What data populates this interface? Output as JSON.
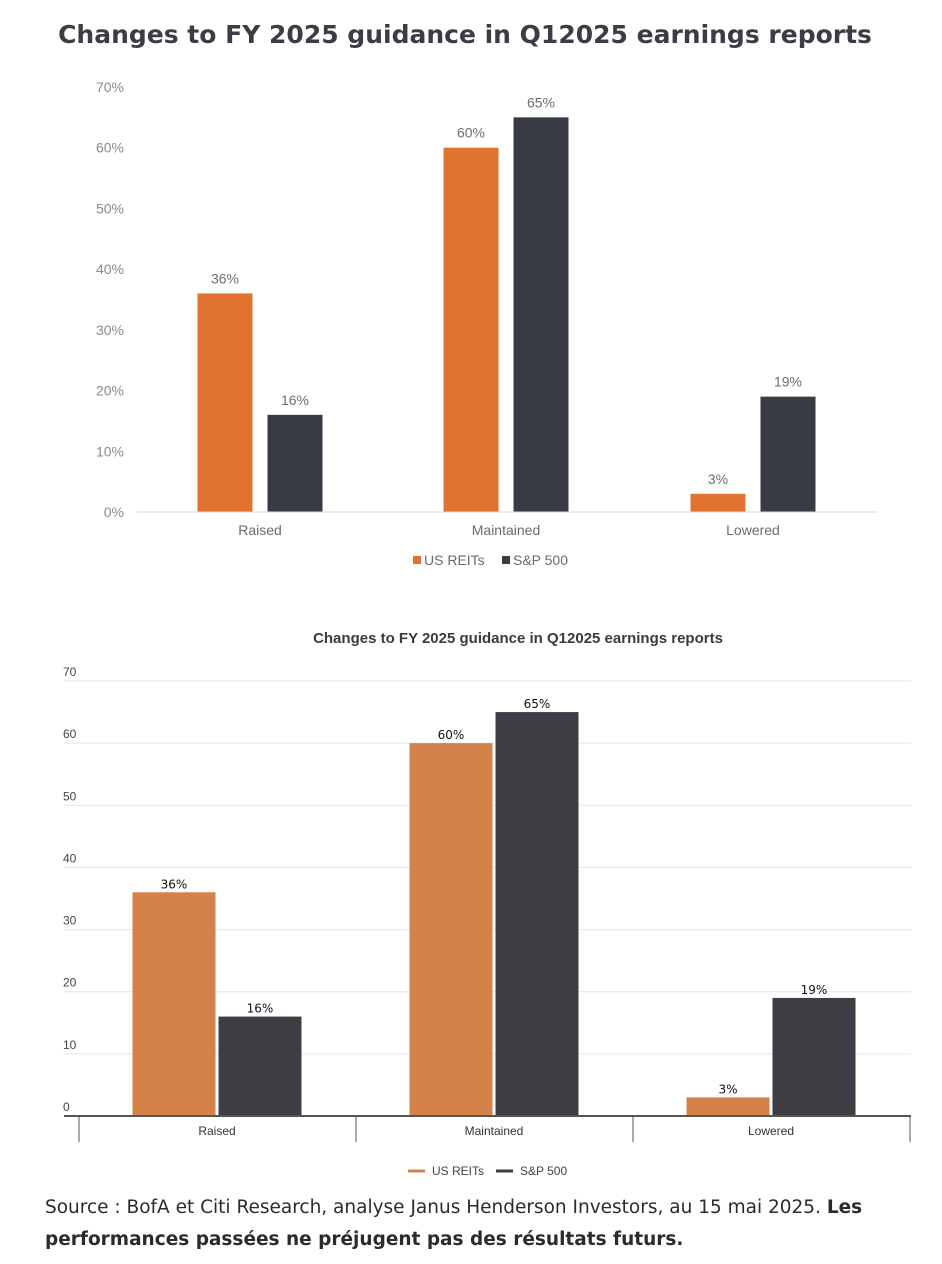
{
  "chart_data": [
    {
      "type": "bar",
      "title": "Changes to FY 2025 guidance in Q12025 earnings reports",
      "categories": [
        "Raised",
        "Maintained",
        "Lowered"
      ],
      "series": [
        {
          "name": "US REITs",
          "values": [
            36,
            60,
            3
          ],
          "labels": [
            "36%",
            "60%",
            "3%"
          ],
          "color": "#e07330"
        },
        {
          "name": "S&P 500",
          "values": [
            16,
            65,
            19
          ],
          "labels": [
            "16%",
            "65%",
            "19%"
          ],
          "color": "#393b44"
        }
      ],
      "ylim": [
        0,
        70
      ],
      "yticks": [
        "0%",
        "10%",
        "20%",
        "30%",
        "40%",
        "50%",
        "60%",
        "70%"
      ],
      "grid": false,
      "legend": "bottom-center"
    },
    {
      "type": "bar",
      "title": "Changes to FY 2025 guidance in Q12025 earnings reports",
      "categories": [
        "Raised",
        "Maintained",
        "Lowered"
      ],
      "series": [
        {
          "name": "US REITs",
          "values": [
            36,
            60,
            3
          ],
          "labels": [
            "36%",
            "60%",
            "3%"
          ],
          "color": "#d4814a"
        },
        {
          "name": "S&P 500",
          "values": [
            16,
            65,
            19
          ],
          "labels": [
            "16%",
            "65%",
            "19%"
          ],
          "color": "#3d3e44"
        }
      ],
      "ylim": [
        0,
        70
      ],
      "yticks": [
        "0",
        "10",
        "20",
        "30",
        "40",
        "50",
        "60",
        "70"
      ],
      "grid": true,
      "legend": "bottom-center"
    }
  ],
  "source": {
    "text": "Source : BofA et Citi Research, analyse Janus Henderson Investors, au 15 mai 2025. ",
    "bold": "Les performances passées ne préjugent pas des résultats futurs."
  }
}
